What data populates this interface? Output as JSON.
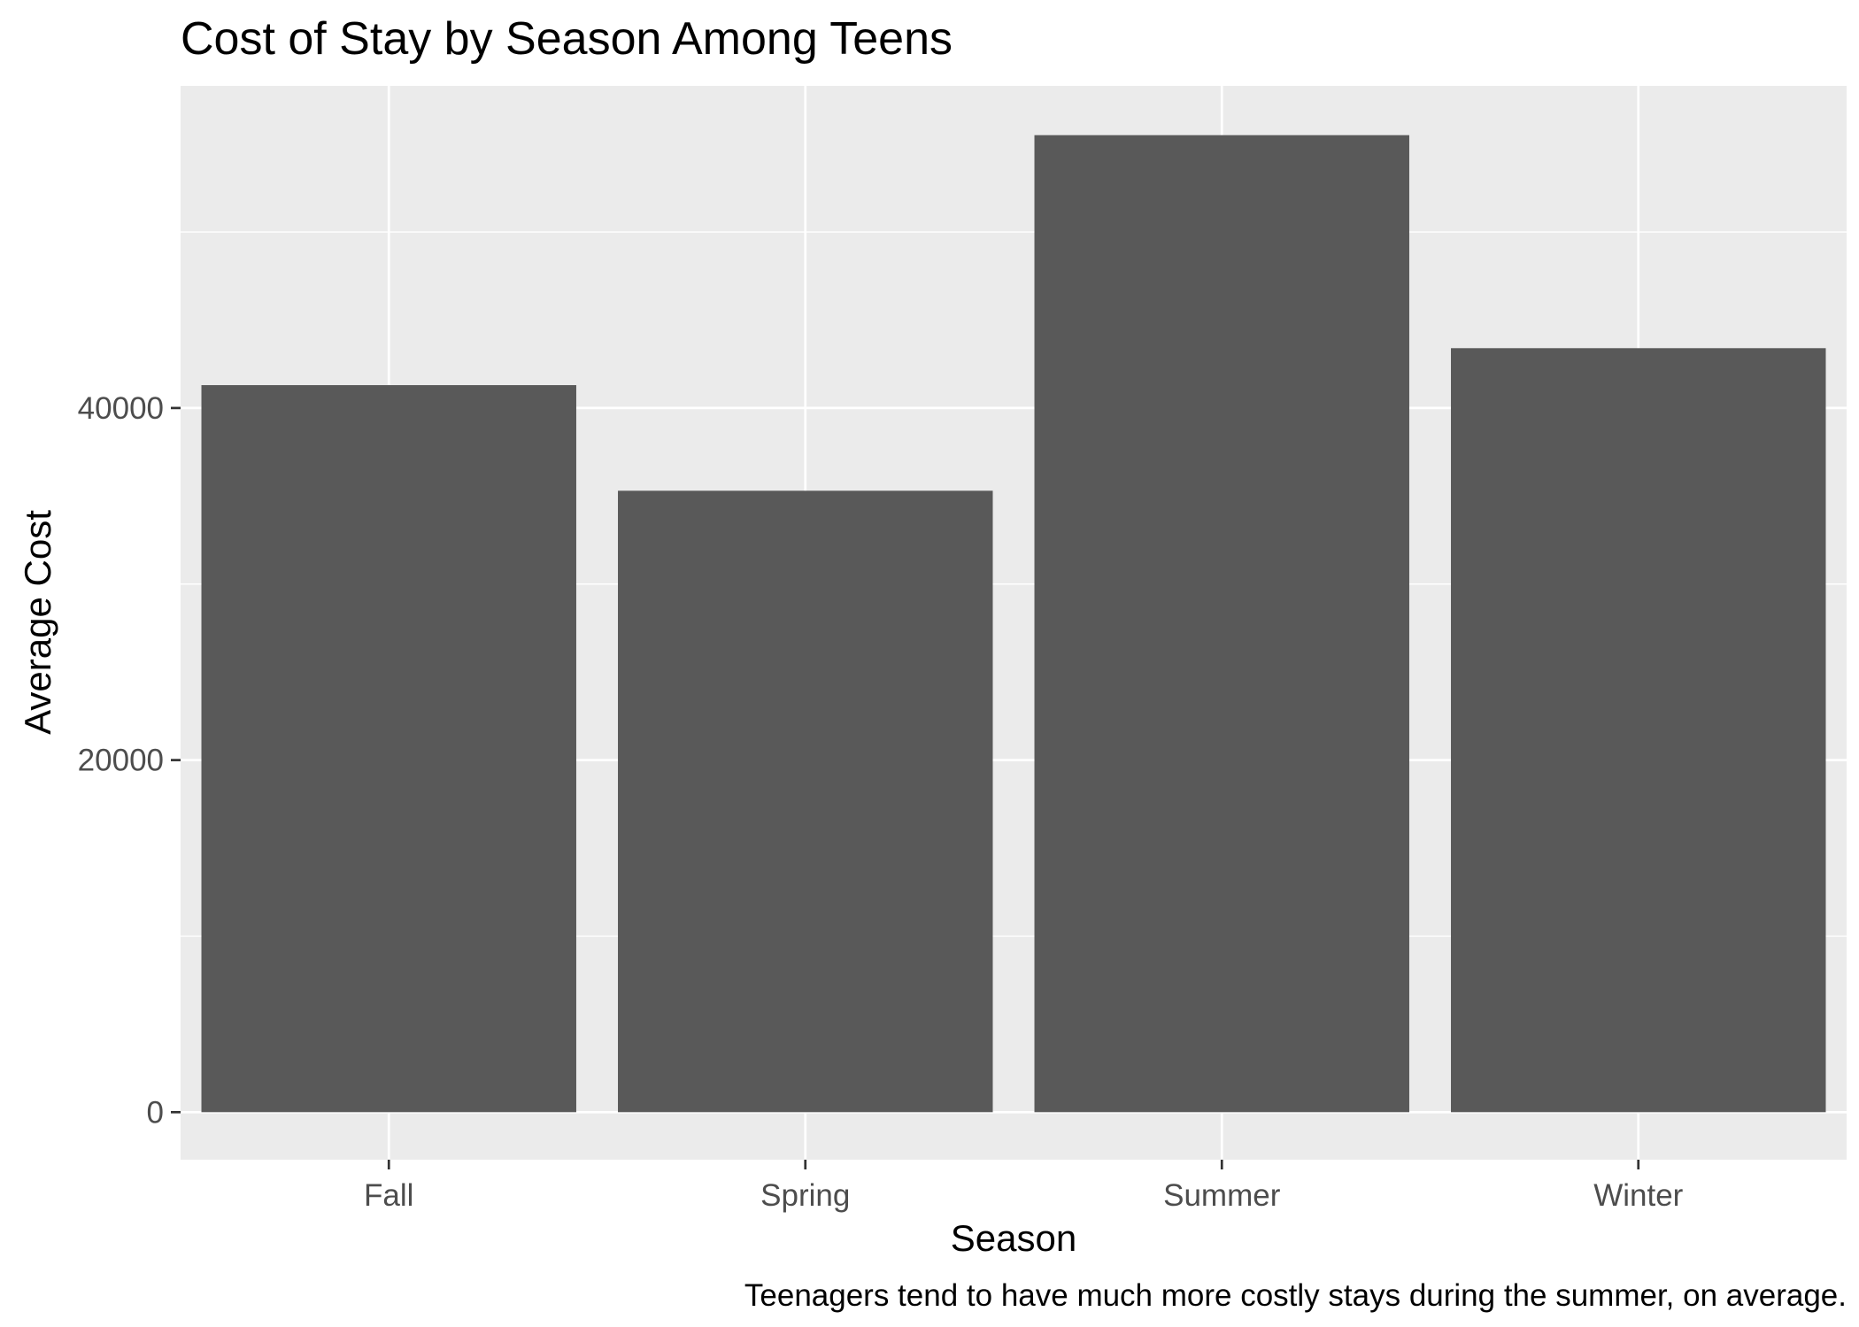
{
  "chart_data": {
    "type": "bar",
    "title": "Cost of Stay by Season Among Teens",
    "xlabel": "Season",
    "ylabel": "Average Cost",
    "caption": "Teenagers tend to have much more costly stays during the summer, on average.",
    "categories": [
      "Fall",
      "Spring",
      "Summer",
      "Winter"
    ],
    "values": [
      41300,
      35300,
      55500,
      43400
    ],
    "ylim": [
      -2700,
      58300
    ],
    "yticks": [
      0,
      20000,
      40000
    ],
    "ytick_labels": [
      "0",
      "20000",
      "40000"
    ],
    "y_minor_ticks": [
      10000,
      30000,
      50000
    ],
    "grid": true,
    "legend": "none",
    "colors": {
      "bar": "#595959",
      "panel": "#ebebeb",
      "grid": "#ffffff",
      "tick_text": "#4d4d4d"
    }
  }
}
